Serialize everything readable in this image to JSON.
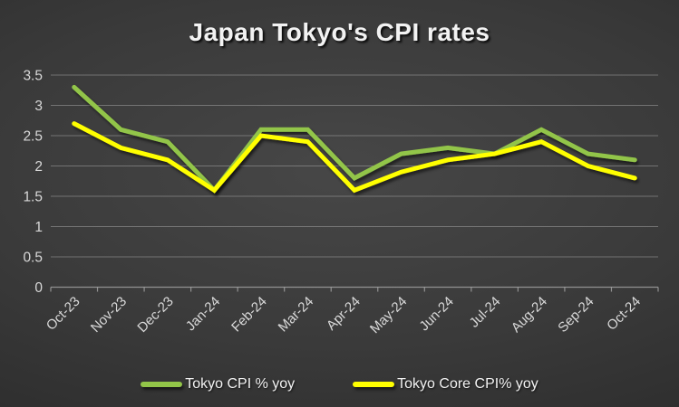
{
  "chart_data": {
    "type": "line",
    "title": "Japan Tokyo's CPI rates",
    "categories": [
      "Oct-23",
      "Nov-23",
      "Dec-23",
      "Jan-24",
      "Feb-24",
      "Mar-24",
      "Apr-24",
      "May-24",
      "Jun-24",
      "Jul-24",
      "Aug-24",
      "Sep-24",
      "Oct-24"
    ],
    "series": [
      {
        "name": "Tokyo CPI % yoy",
        "color": "#92C548",
        "values": [
          3.3,
          2.6,
          2.4,
          1.6,
          2.6,
          2.6,
          1.8,
          2.2,
          2.3,
          2.2,
          2.6,
          2.2,
          2.1
        ]
      },
      {
        "name": "Tokyo Core CPI% yoy",
        "color": "#FFFF00",
        "values": [
          2.7,
          2.3,
          2.1,
          1.6,
          2.5,
          2.4,
          1.6,
          1.9,
          2.1,
          2.2,
          2.4,
          2.0,
          1.8
        ]
      }
    ],
    "ylim": [
      0,
      3.5
    ],
    "yticks": [
      0,
      0.5,
      1,
      1.5,
      2,
      2.5,
      3,
      3.5
    ],
    "ytick_labels": [
      "0",
      "0.5",
      "1",
      "1.5",
      "2",
      "2.5",
      "3",
      "3.5"
    ],
    "grid": true,
    "legend_position": "bottom",
    "colors": {
      "background_center": "#474747",
      "background_edge": "#262626",
      "gridline": "#a0a0a0",
      "axis": "#a8a8a8",
      "tick_label": "#d9d9d9",
      "title_text": "#f2f2f2",
      "legend_text": "#f2f2f2"
    }
  }
}
